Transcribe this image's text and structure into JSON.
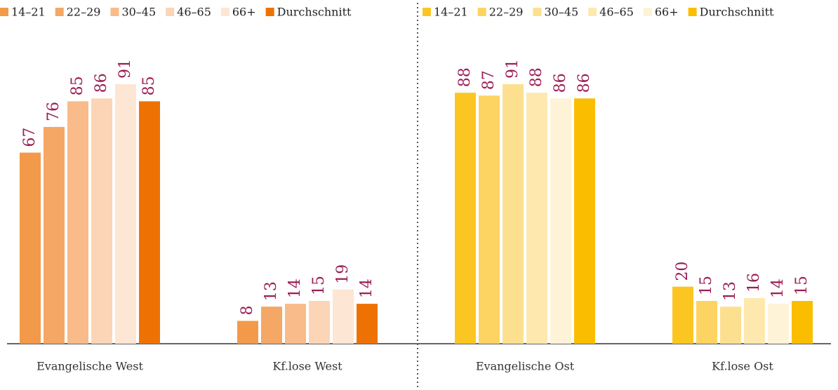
{
  "chart_data": [
    {
      "type": "bar",
      "categories": [
        "Evangelische West",
        "Kf.lose West"
      ],
      "series": [
        {
          "name": "14–21",
          "color": "#f39a4a",
          "values": [
            67,
            8
          ]
        },
        {
          "name": "22–29",
          "color": "#f5a765",
          "values": [
            76,
            13
          ]
        },
        {
          "name": "30–45",
          "color": "#f8bb89",
          "values": [
            85,
            14
          ]
        },
        {
          "name": "46–65",
          "color": "#fbd5b6",
          "values": [
            86,
            15
          ]
        },
        {
          "name": "66+",
          "color": "#fde6d3",
          "values": [
            91,
            19
          ]
        },
        {
          "name": "Durchschnitt",
          "color": "#ee7203",
          "values": [
            85,
            14
          ]
        }
      ]
    },
    {
      "type": "bar",
      "categories": [
        "Evangelische Ost",
        "Kf.lose Ost"
      ],
      "series": [
        {
          "name": "14–21",
          "color": "#fcc622",
          "values": [
            88,
            20
          ]
        },
        {
          "name": "22–29",
          "color": "#fdd462",
          "values": [
            87,
            15
          ]
        },
        {
          "name": "30–45",
          "color": "#fde08f",
          "values": [
            91,
            13
          ]
        },
        {
          "name": "46–65",
          "color": "#fee8ae",
          "values": [
            88,
            16
          ]
        },
        {
          "name": "66+",
          "color": "#fef3d6",
          "values": [
            86,
            14
          ]
        },
        {
          "name": "Durchschnitt",
          "color": "#fbbd00",
          "values": [
            86,
            15
          ]
        }
      ]
    }
  ]
}
